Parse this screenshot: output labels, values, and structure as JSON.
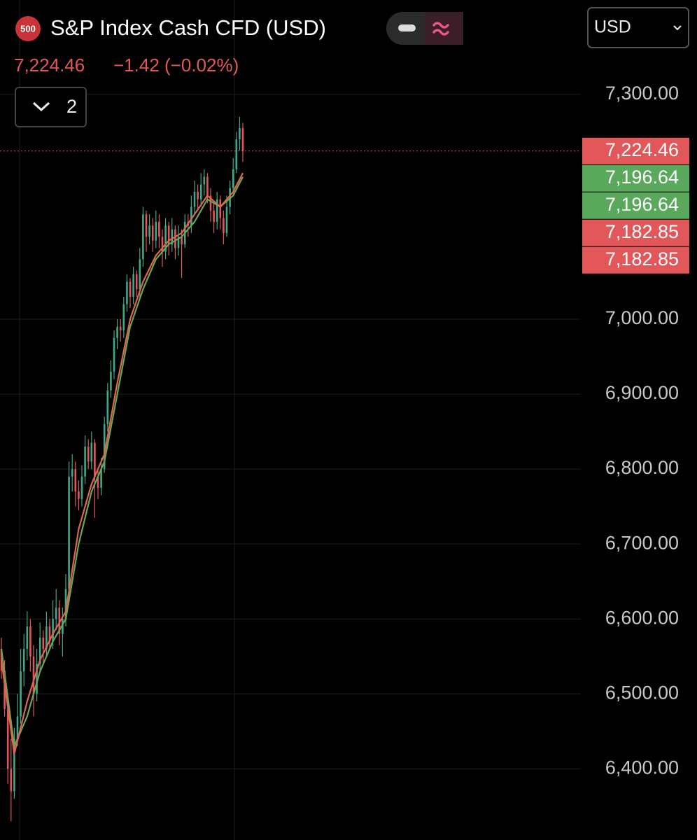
{
  "header": {
    "badge": "500",
    "title": "S&P Index Cash CFD (USD)",
    "last": "7,224.46",
    "change": "−1.42 (−0.02%)",
    "currency": "USD",
    "indicator_count": "2"
  },
  "chart_data": {
    "type": "candlestick",
    "up_color": "#3fa88a",
    "down_color": "#e2585a",
    "candles": [
      [
        6560,
        6575,
        6520,
        6531
      ],
      [
        6531,
        6545,
        6470,
        6480
      ],
      [
        6480,
        6490,
        6380,
        6400
      ],
      [
        6400,
        6440,
        6330,
        6370
      ],
      [
        6370,
        6455,
        6360,
        6440
      ],
      [
        6440,
        6500,
        6430,
        6470
      ],
      [
        6470,
        6560,
        6460,
        6530
      ],
      [
        6530,
        6580,
        6510,
        6560
      ],
      [
        6560,
        6610,
        6545,
        6590
      ],
      [
        6590,
        6600,
        6530,
        6550
      ],
      [
        6550,
        6565,
        6470,
        6500
      ],
      [
        6500,
        6560,
        6490,
        6540
      ],
      [
        6540,
        6595,
        6530,
        6575
      ],
      [
        6575,
        6585,
        6540,
        6560
      ],
      [
        6560,
        6610,
        6550,
        6590
      ],
      [
        6590,
        6600,
        6560,
        6570
      ],
      [
        6570,
        6625,
        6560,
        6600
      ],
      [
        6600,
        6640,
        6585,
        6615
      ],
      [
        6615,
        6625,
        6565,
        6580
      ],
      [
        6580,
        6615,
        6550,
        6600
      ],
      [
        6600,
        6660,
        6590,
        6640
      ],
      [
        6640,
        6810,
        6630,
        6790
      ],
      [
        6790,
        6820,
        6770,
        6800
      ],
      [
        6800,
        6810,
        6750,
        6770
      ],
      [
        6770,
        6785,
        6745,
        6760
      ],
      [
        6760,
        6805,
        6750,
        6790
      ],
      [
        6790,
        6845,
        6780,
        6830
      ],
      [
        6830,
        6840,
        6800,
        6810
      ],
      [
        6810,
        6850,
        6800,
        6835
      ],
      [
        6835,
        6840,
        6735,
        6790
      ],
      [
        6790,
        6800,
        6760,
        6775
      ],
      [
        6775,
        6815,
        6765,
        6800
      ],
      [
        6800,
        6870,
        6795,
        6860
      ],
      [
        6860,
        6915,
        6850,
        6905
      ],
      [
        6905,
        6945,
        6895,
        6930
      ],
      [
        6930,
        6985,
        6920,
        6975
      ],
      [
        6975,
        7000,
        6960,
        6990
      ],
      [
        6990,
        7000,
        6970,
        6985
      ],
      [
        6985,
        7030,
        6975,
        7020
      ],
      [
        7020,
        7060,
        7010,
        7050
      ],
      [
        7050,
        7055,
        7015,
        7030
      ],
      [
        7030,
        7070,
        7020,
        7060
      ],
      [
        7060,
        7065,
        7030,
        7040
      ],
      [
        7040,
        7095,
        7030,
        7080
      ],
      [
        7080,
        7150,
        7070,
        7140
      ],
      [
        7140,
        7145,
        7090,
        7110
      ],
      [
        7110,
        7140,
        7100,
        7125
      ],
      [
        7125,
        7135,
        7090,
        7105
      ],
      [
        7105,
        7145,
        7095,
        7130
      ],
      [
        7130,
        7140,
        7095,
        7110
      ],
      [
        7110,
        7120,
        7070,
        7090
      ],
      [
        7090,
        7135,
        7080,
        7125
      ],
      [
        7125,
        7130,
        7085,
        7100
      ],
      [
        7100,
        7135,
        7090,
        7120
      ],
      [
        7120,
        7125,
        7080,
        7095
      ],
      [
        7095,
        7125,
        7085,
        7110
      ],
      [
        7110,
        7120,
        7055,
        7100
      ],
      [
        7100,
        7140,
        7095,
        7130
      ],
      [
        7130,
        7140,
        7110,
        7125
      ],
      [
        7125,
        7165,
        7115,
        7150
      ],
      [
        7150,
        7185,
        7140,
        7170
      ],
      [
        7170,
        7180,
        7145,
        7160
      ],
      [
        7160,
        7195,
        7150,
        7180
      ],
      [
        7180,
        7200,
        7165,
        7190
      ],
      [
        7190,
        7195,
        7155,
        7165
      ],
      [
        7165,
        7175,
        7130,
        7145
      ],
      [
        7145,
        7155,
        7115,
        7130
      ],
      [
        7130,
        7170,
        7120,
        7160
      ],
      [
        7160,
        7165,
        7120,
        7135
      ],
      [
        7135,
        7145,
        7100,
        7115
      ],
      [
        7115,
        7165,
        7110,
        7150
      ],
      [
        7150,
        7185,
        7140,
        7175
      ],
      [
        7175,
        7215,
        7165,
        7200
      ],
      [
        7200,
        7250,
        7195,
        7240
      ],
      [
        7240,
        7270,
        7225,
        7255
      ],
      [
        7255,
        7262,
        7210,
        7224.46
      ]
    ],
    "ma_index": [
      0,
      4,
      8,
      12,
      16,
      20,
      24,
      28,
      32,
      36,
      40,
      44,
      48,
      52,
      56,
      60,
      64,
      68,
      72,
      75
    ],
    "series": [
      {
        "color": "#6aa84f",
        "values": [
          6560,
          6430,
          6470,
          6530,
          6570,
          6600,
          6700,
          6770,
          6810,
          6900,
          6990,
          7040,
          7080,
          7100,
          7110,
          7130,
          7160,
          7150,
          7165,
          7190
        ]
      },
      {
        "color": "#e0664f",
        "values": [
          6545,
          6420,
          6490,
          6545,
          6580,
          6610,
          6720,
          6780,
          6820,
          6915,
          7000,
          7050,
          7085,
          7105,
          7115,
          7140,
          7165,
          7150,
          7170,
          7195
        ]
      }
    ],
    "ylim": [
      6305,
      7426
    ],
    "yticks": [
      {
        "value": 6400,
        "label": "6,400.00"
      },
      {
        "value": 6500,
        "label": "6,500.00"
      },
      {
        "value": 6600,
        "label": "6,600.00"
      },
      {
        "value": 6700,
        "label": "6,700.00"
      },
      {
        "value": 6800,
        "label": "6,800.00"
      },
      {
        "value": 6900,
        "label": "6,900.00"
      },
      {
        "value": 7000,
        "label": "7,000.00"
      },
      {
        "value": 7300,
        "label": "7,300.00"
      }
    ],
    "price_tags": [
      {
        "value": 7224.46,
        "label": "7,224.46",
        "color": "#e2585a"
      },
      {
        "value": 7196.64,
        "label": "7,196.64",
        "color": "#5aa85c"
      },
      {
        "value": 7196.64,
        "label": "7,196.64",
        "color": "#5aa85c"
      },
      {
        "value": 7182.85,
        "label": "7,182.85",
        "color": "#e2585a"
      },
      {
        "value": 7182.85,
        "label": "7,182.85",
        "color": "#e2585a"
      }
    ],
    "grid": true
  }
}
